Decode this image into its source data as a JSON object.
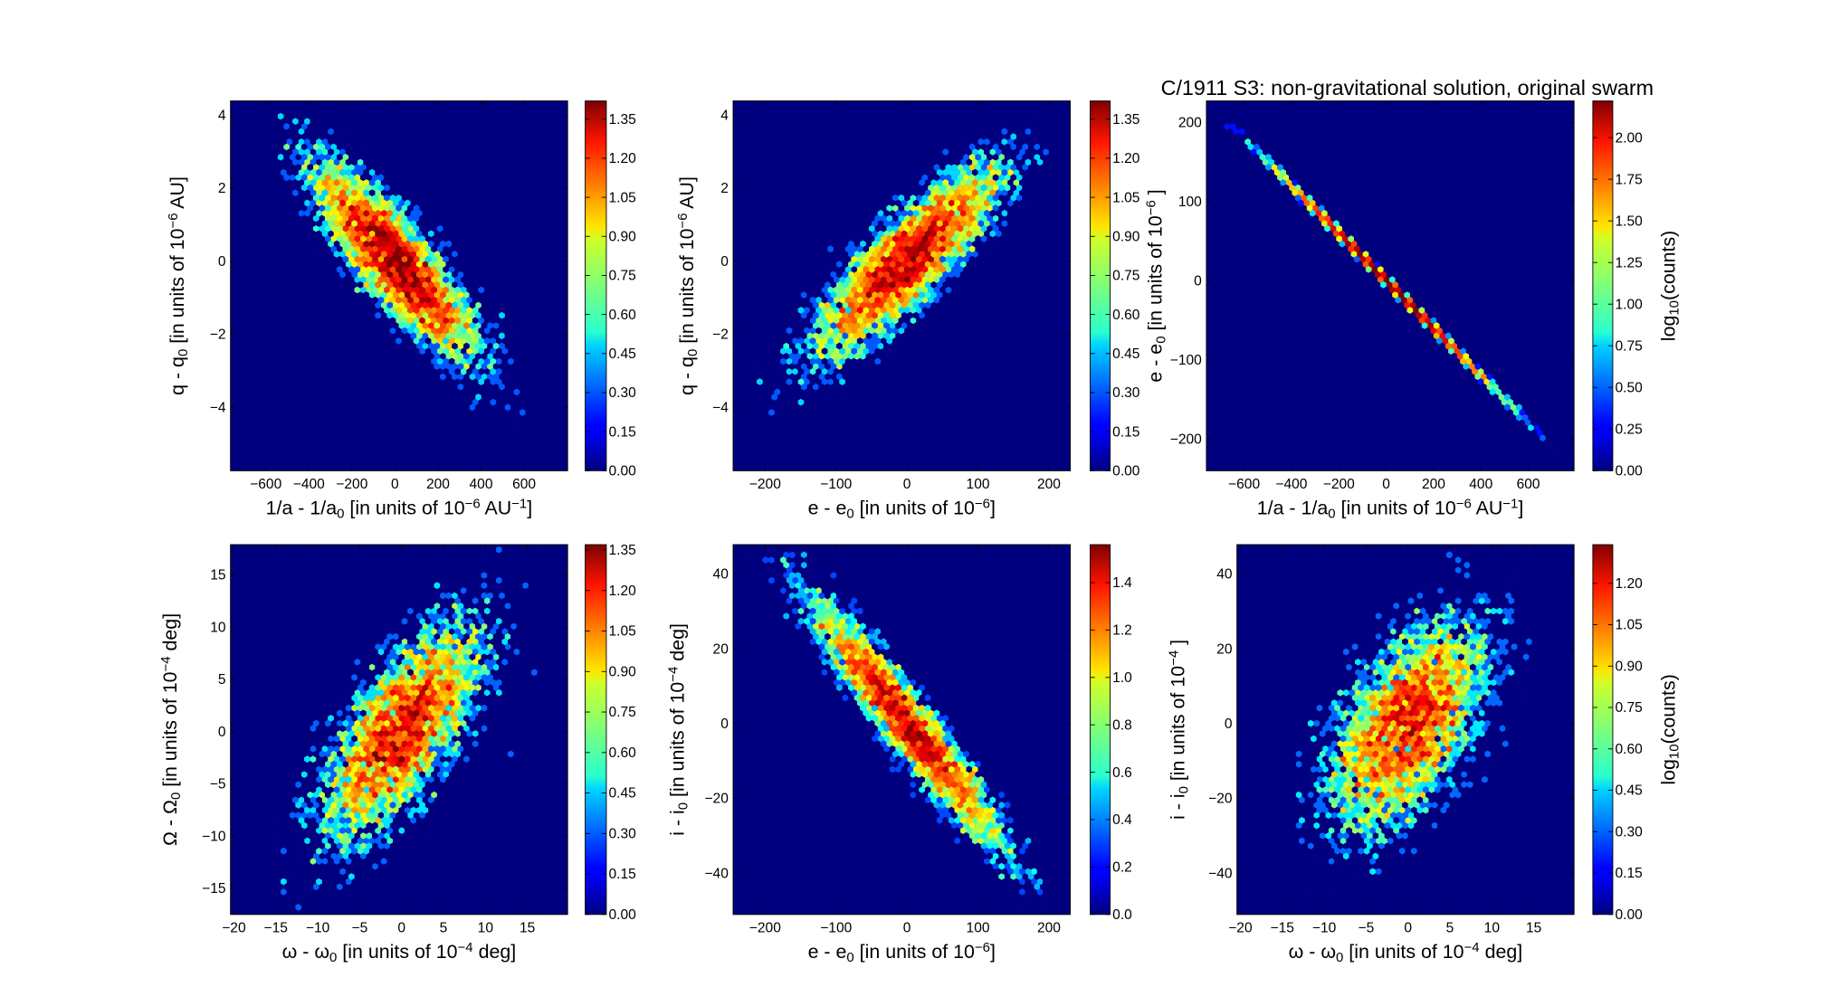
{
  "title": "C/1911 S3:  non-gravitational solution, original swarm",
  "colors": {
    "background_bin": "#00007f",
    "axes_edge": "#000000"
  },
  "chart_data": [
    {
      "type": "heatmap",
      "subtype": "hexbin",
      "colormap": "jet",
      "xlabel": [
        {
          "t": "1/a - 1/a"
        },
        {
          "t": "0",
          "s": "sub"
        },
        {
          "t": " [in units of 10"
        },
        {
          "t": "−6",
          "s": "sup"
        },
        {
          "t": " AU"
        },
        {
          "t": "−1",
          "s": "sup"
        },
        {
          "t": "]"
        }
      ],
      "ylabel": [
        {
          "t": "q - q"
        },
        {
          "t": "0",
          "s": "sub"
        },
        {
          "t": " [in units of 10"
        },
        {
          "t": "−6",
          "s": "sup"
        },
        {
          "t": " AU]"
        }
      ],
      "xlim": [
        -764,
        802
      ],
      "ylim": [
        -5.74,
        4.39
      ],
      "xticks": [
        -600,
        -400,
        -200,
        0,
        200,
        400,
        600
      ],
      "xticklabels": [
        "−600",
        "−400",
        "−200",
        "0",
        "200",
        "400",
        "600"
      ],
      "yticks": [
        -4,
        -2,
        0,
        2,
        4
      ],
      "yticklabels": [
        "−4",
        "−2",
        "0",
        "2",
        "4"
      ],
      "distribution": {
        "x_mean": 0,
        "y_mean": 0,
        "x_sigma": 200,
        "y_sigma": 1.4,
        "correlation": -0.85
      },
      "colorbar": {
        "range": [
          0,
          1.42
        ],
        "ticks": [
          0,
          0.15,
          0.3,
          0.45,
          0.6,
          0.75,
          0.9,
          1.05,
          1.2,
          1.35
        ],
        "ticklabels": [
          "0.00",
          "0.15",
          "0.30",
          "0.45",
          "0.60",
          "0.75",
          "0.90",
          "1.05",
          "1.20",
          "1.35"
        ],
        "label": []
      }
    },
    {
      "type": "heatmap",
      "subtype": "hexbin",
      "colormap": "jet",
      "xlabel": [
        {
          "t": "e - e"
        },
        {
          "t": "0",
          "s": "sub"
        },
        {
          "t": " [in units of 10"
        },
        {
          "t": "−6",
          "s": "sup"
        },
        {
          "t": "]"
        }
      ],
      "ylabel": [
        {
          "t": "q - q"
        },
        {
          "t": "0",
          "s": "sub"
        },
        {
          "t": " [in units of 10"
        },
        {
          "t": "−6",
          "s": "sup"
        },
        {
          "t": " AU]"
        }
      ],
      "xlim": [
        -245,
        230
      ],
      "ylim": [
        -5.74,
        4.39
      ],
      "xticks": [
        -200,
        -100,
        0,
        100,
        200
      ],
      "xticklabels": [
        "−200",
        "−100",
        "0",
        "100",
        "200"
      ],
      "yticks": [
        -4,
        -2,
        0,
        2,
        4
      ],
      "yticklabels": [
        "−4",
        "−2",
        "0",
        "2",
        "4"
      ],
      "distribution": {
        "x_mean": 0,
        "y_mean": 0,
        "x_sigma": 70,
        "y_sigma": 1.4,
        "correlation": 0.85
      },
      "colorbar": {
        "range": [
          0,
          1.42
        ],
        "ticks": [
          0,
          0.15,
          0.3,
          0.45,
          0.6,
          0.75,
          0.9,
          1.05,
          1.2,
          1.35
        ],
        "ticklabels": [
          "0.00",
          "0.15",
          "0.30",
          "0.45",
          "0.60",
          "0.75",
          "0.90",
          "1.05",
          "1.20",
          "1.35"
        ],
        "label": []
      }
    },
    {
      "type": "heatmap",
      "subtype": "hexbin",
      "colormap": "jet",
      "xlabel": [
        {
          "t": "1/a - 1/a"
        },
        {
          "t": "0",
          "s": "sub"
        },
        {
          "t": " [in units of 10"
        },
        {
          "t": "−6",
          "s": "sup"
        },
        {
          "t": " AU"
        },
        {
          "t": "−1",
          "s": "sup"
        },
        {
          "t": "]"
        }
      ],
      "ylabel": [
        {
          "t": "e - e"
        },
        {
          "t": "0",
          "s": "sub"
        },
        {
          "t": " [in units of 10"
        },
        {
          "t": "−6",
          "s": "sup"
        },
        {
          "t": " ]"
        }
      ],
      "xlim": [
        -759,
        793
      ],
      "ylim": [
        -240,
        227
      ],
      "xticks": [
        -600,
        -400,
        -200,
        0,
        200,
        400,
        600
      ],
      "xticklabels": [
        "−600",
        "−400",
        "−200",
        "0",
        "200",
        "400",
        "600"
      ],
      "yticks": [
        -200,
        -100,
        0,
        100,
        200
      ],
      "yticklabels": [
        "−200",
        "−100",
        "0",
        "100",
        "200"
      ],
      "distribution": {
        "x_mean": 0,
        "y_mean": 0,
        "x_sigma": 220,
        "y_sigma": 66,
        "correlation": -0.9995
      },
      "colorbar": {
        "range": [
          0,
          2.22
        ],
        "ticks": [
          0,
          0.25,
          0.5,
          0.75,
          1,
          1.25,
          1.5,
          1.75,
          2
        ],
        "ticklabels": [
          "0.00",
          "0.25",
          "0.50",
          "0.75",
          "1.00",
          "1.25",
          "1.50",
          "1.75",
          "2.00"
        ],
        "label": [
          {
            "t": "log"
          },
          {
            "t": "10",
            "s": "sub"
          },
          {
            "t": "(counts)"
          }
        ]
      }
    },
    {
      "type": "heatmap",
      "subtype": "hexbin",
      "colormap": "jet",
      "xlabel": [
        {
          "t": "ω - ω"
        },
        {
          "t": "0",
          "s": "sub"
        },
        {
          "t": " [in units of 10"
        },
        {
          "t": "−4",
          "s": "sup"
        },
        {
          "t": " deg]"
        }
      ],
      "ylabel": [
        {
          "t": "Ω - Ω"
        },
        {
          "t": "0",
          "s": "sub"
        },
        {
          "t": " [in units of 10"
        },
        {
          "t": "−4",
          "s": "sup"
        },
        {
          "t": " deg]"
        }
      ],
      "xlim": [
        -20.4,
        19.8
      ],
      "ylim": [
        -17.5,
        17.9
      ],
      "xticks": [
        -20,
        -15,
        -10,
        -5,
        0,
        5,
        10,
        15
      ],
      "xticklabels": [
        "−20",
        "−15",
        "−10",
        "−5",
        "0",
        "5",
        "10",
        "15"
      ],
      "yticks": [
        -15,
        -10,
        -5,
        0,
        5,
        10,
        15
      ],
      "yticklabels": [
        "−15",
        "−10",
        "−5",
        "0",
        "5",
        "10",
        "15"
      ],
      "distribution": {
        "x_mean": 0,
        "y_mean": 0,
        "x_sigma": 5,
        "y_sigma": 5.5,
        "correlation": 0.7
      },
      "colorbar": {
        "range": [
          0,
          1.37
        ],
        "ticks": [
          0,
          0.15,
          0.3,
          0.45,
          0.6,
          0.75,
          0.9,
          1.05,
          1.2,
          1.35
        ],
        "ticklabels": [
          "0.00",
          "0.15",
          "0.30",
          "0.45",
          "0.60",
          "0.75",
          "0.90",
          "1.05",
          "1.20",
          "1.35"
        ],
        "label": []
      }
    },
    {
      "type": "heatmap",
      "subtype": "hexbin",
      "colormap": "jet",
      "xlabel": [
        {
          "t": "e - e"
        },
        {
          "t": "0",
          "s": "sub"
        },
        {
          "t": " [in units of 10"
        },
        {
          "t": "−6",
          "s": "sup"
        },
        {
          "t": "]"
        }
      ],
      "ylabel": [
        {
          "t": "i - i"
        },
        {
          "t": "0",
          "s": "sub"
        },
        {
          "t": " [in units of 10"
        },
        {
          "t": "−4",
          "s": "sup"
        },
        {
          "t": " deg]"
        }
      ],
      "xlim": [
        -245,
        230
      ],
      "ylim": [
        -51,
        47.8
      ],
      "xticks": [
        -200,
        -100,
        0,
        100,
        200
      ],
      "xticklabels": [
        "−200",
        "−100",
        "0",
        "100",
        "200"
      ],
      "yticks": [
        -40,
        -20,
        0,
        20,
        40
      ],
      "yticklabels": [
        "−40",
        "−20",
        "0",
        "20",
        "40"
      ],
      "distribution": {
        "x_mean": 0,
        "y_mean": 0,
        "x_sigma": 70,
        "y_sigma": 17,
        "correlation": -0.95
      },
      "colorbar": {
        "range": [
          0,
          1.56
        ],
        "ticks": [
          0,
          0.2,
          0.4,
          0.6,
          0.8,
          1,
          1.2,
          1.4
        ],
        "ticklabels": [
          "0.0",
          "0.2",
          "0.4",
          "0.6",
          "0.8",
          "1.0",
          "1.2",
          "1.4"
        ],
        "label": []
      }
    },
    {
      "type": "heatmap",
      "subtype": "hexbin",
      "colormap": "jet",
      "xlabel": [
        {
          "t": "ω - ω"
        },
        {
          "t": "0",
          "s": "sub"
        },
        {
          "t": " [in units of 10"
        },
        {
          "t": "−4",
          "s": "sup"
        },
        {
          "t": " deg]"
        }
      ],
      "ylabel": [
        {
          "t": "i - i"
        },
        {
          "t": "0",
          "s": "sub"
        },
        {
          "t": " [in units of 10"
        },
        {
          "t": "−4",
          "s": "sup"
        },
        {
          "t": " ]"
        }
      ],
      "xlim": [
        -20.4,
        19.8
      ],
      "ylim": [
        -51,
        47.8
      ],
      "xticks": [
        -20,
        -15,
        -10,
        -5,
        0,
        5,
        10,
        15
      ],
      "xticklabels": [
        "−20",
        "−15",
        "−10",
        "−5",
        "0",
        "5",
        "10",
        "15"
      ],
      "yticks": [
        -40,
        -20,
        0,
        20,
        40
      ],
      "yticklabels": [
        "−40",
        "−20",
        "0",
        "20",
        "40"
      ],
      "distribution": {
        "x_mean": 0,
        "y_mean": 0,
        "x_sigma": 5,
        "y_sigma": 15,
        "correlation": 0.55
      },
      "colorbar": {
        "range": [
          0,
          1.34
        ],
        "ticks": [
          0,
          0.15,
          0.3,
          0.45,
          0.6,
          0.75,
          0.9,
          1.05,
          1.2
        ],
        "ticklabels": [
          "0.00",
          "0.15",
          "0.30",
          "0.45",
          "0.60",
          "0.75",
          "0.90",
          "1.05",
          "1.20"
        ],
        "label": [
          {
            "t": "log"
          },
          {
            "t": "10",
            "s": "sub"
          },
          {
            "t": "(counts)"
          }
        ]
      }
    }
  ]
}
